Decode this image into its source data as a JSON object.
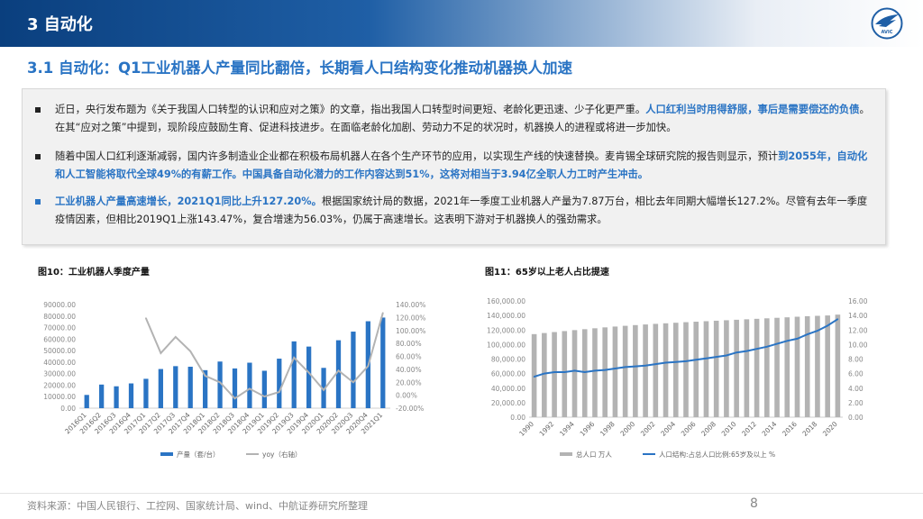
{
  "header": {
    "section_title": "3 自动化",
    "subtitle": "3.1 自动化：Q1工业机器人产量同比翻倍，长期看人口结构变化推动机器换人加速",
    "logo_icon": "avic-wing-logo-icon",
    "logo_text": "AVIC"
  },
  "bullets": [
    {
      "segments": [
        {
          "text": "近日，央行发布题为《关于我国人口转型的认识和应对之策》的文章，指出我国人口转型时间更短、老龄化更迅速、少子化更严重。",
          "hl": false
        },
        {
          "text": "人口红利当时用得舒服，事后是需要偿还的负债",
          "hl": true
        },
        {
          "text": "。在其“应对之策”中提到，现阶段应鼓励生育、促进科技进步。在面临老龄化加剧、劳动力不足的状况时，机器换人的进程或将进一步加快。",
          "hl": false
        }
      ]
    },
    {
      "segments": [
        {
          "text": "随着中国人口红利逐渐减弱，国内许多制造业企业都在积极布局机器人在各个生产环节的应用，以实现生产线的快速替换。麦肯锡全球研究院的报告则显示，预计",
          "hl": false
        },
        {
          "text": "到2055年，自动化和人工智能将取代全球49%的有薪工作。中国具备自动化潜力的工作内容达到51%，这将对相当于3.94亿全职人力工时产生冲击。",
          "hl": true
        }
      ]
    },
    {
      "segments": [
        {
          "text": "工业机器人产量高速增长，2021Q1同比上升127.20%。",
          "hl": true
        },
        {
          "text": "根据国家统计局的数据，2021年一季度工业机器人产量为7.87万台，相比去年同期大幅增长127.2%。尽管有去年一季度疫情因素，但相比2019Q1上涨143.47%，复合增速为56.03%，仍属于高速增长。这表明下游对于机器换人的强劲需求。",
          "hl": false
        }
      ]
    }
  ],
  "figures": {
    "fig10_title": "图10：工业机器人季度产量",
    "fig11_title": "图11：65岁以上老人占比提速"
  },
  "chart_data": [
    {
      "type": "bar",
      "categories": [
        "2016Q1",
        "2016Q2",
        "2016Q3",
        "2016Q4",
        "2017Q1",
        "2017Q2",
        "2017Q3",
        "2017Q4",
        "2018Q1",
        "2018Q2",
        "2018Q3",
        "2018Q4",
        "2019Q1",
        "2019Q2",
        "2019Q3",
        "2019Q4",
        "2020Q1",
        "2020Q2",
        "2020Q3",
        "2020Q4",
        "2021Q1"
      ],
      "series": [
        {
          "name": "产量（套/台）",
          "type": "bar",
          "axis": "left",
          "color": "#2a74c4",
          "values": [
            11500,
            20500,
            19000,
            21500,
            25500,
            34000,
            36500,
            36000,
            33000,
            40500,
            34500,
            39500,
            32500,
            43000,
            58000,
            53500,
            35000,
            59000,
            66500,
            75500,
            78700
          ]
        },
        {
          "name": "yoy（右轴）",
          "type": "line",
          "axis": "right",
          "color": "#b3b3b3",
          "values": [
            null,
            null,
            null,
            null,
            119,
            65,
            90,
            68,
            30,
            20,
            -5,
            10,
            -2,
            5,
            58,
            35,
            8,
            38,
            20,
            45,
            127.2
          ]
        }
      ],
      "yleft_ticks": [
        "90000.00",
        "80000.00",
        "70000.00",
        "60000.00",
        "50000.00",
        "40000.00",
        "30000.00",
        "20000.00",
        "10000.00",
        "0.00"
      ],
      "yleft_range": [
        0,
        90000
      ],
      "yright_ticks": [
        "140.00%",
        "120.00%",
        "100.00%",
        "80.00%",
        "60.00%",
        "40.00%",
        "20.00%",
        "0.00%",
        "-20.00%"
      ],
      "yright_range": [
        -20,
        140
      ],
      "legend_position": "bottom",
      "grid": false
    },
    {
      "type": "bar",
      "categories": [
        "1990",
        "1991",
        "1992",
        "1993",
        "1994",
        "1995",
        "1996",
        "1997",
        "1998",
        "1999",
        "2000",
        "2001",
        "2002",
        "2003",
        "2004",
        "2005",
        "2006",
        "2007",
        "2008",
        "2009",
        "2010",
        "2011",
        "2012",
        "2013",
        "2014",
        "2015",
        "2016",
        "2017",
        "2018",
        "2019",
        "2020"
      ],
      "x_tick_labels": [
        "1990",
        "1992",
        "1994",
        "1996",
        "1998",
        "2000",
        "2002",
        "2004",
        "2006",
        "2008",
        "2010",
        "2012",
        "2014",
        "2016",
        "2018",
        "2020"
      ],
      "series": [
        {
          "name": "总人口 万人",
          "type": "bar",
          "axis": "left",
          "color": "#b3b3b3",
          "values": [
            114333,
            115823,
            117171,
            118517,
            119850,
            121121,
            122389,
            123626,
            124761,
            125786,
            126743,
            127627,
            128453,
            129227,
            129988,
            130756,
            131448,
            132129,
            132802,
            133450,
            134091,
            134735,
            135404,
            136072,
            136782,
            137462,
            138271,
            139008,
            139538,
            140005,
            141178
          ]
        },
        {
          "name": "人口结构:占总人口比例:65岁及以上 %",
          "type": "line",
          "axis": "right",
          "color": "#2a74c4",
          "values": [
            5.57,
            6.0,
            6.2,
            6.2,
            6.4,
            6.2,
            6.4,
            6.5,
            6.7,
            6.9,
            7.0,
            7.1,
            7.3,
            7.5,
            7.6,
            7.7,
            7.9,
            8.1,
            8.3,
            8.5,
            8.9,
            9.1,
            9.4,
            9.7,
            10.1,
            10.5,
            10.8,
            11.4,
            11.9,
            12.6,
            13.5
          ]
        }
      ],
      "yleft_ticks": [
        "160,000.00",
        "140,000.00",
        "120,000.00",
        "100,000.00",
        "80,000.00",
        "60,000.00",
        "40,000.00",
        "20,000.00",
        "0.00"
      ],
      "yleft_range": [
        0,
        160000
      ],
      "yright_ticks": [
        "16.00",
        "14.00",
        "12.00",
        "10.00",
        "8.00",
        "6.00",
        "4.00",
        "2.00",
        "0.00"
      ],
      "yright_range": [
        0,
        16
      ],
      "legend_position": "bottom",
      "grid": false
    }
  ],
  "footer": {
    "source": "资料来源：中国人民银行、工控网、国家统计局、wind、中航证券研究所整理",
    "page_number": "8"
  }
}
